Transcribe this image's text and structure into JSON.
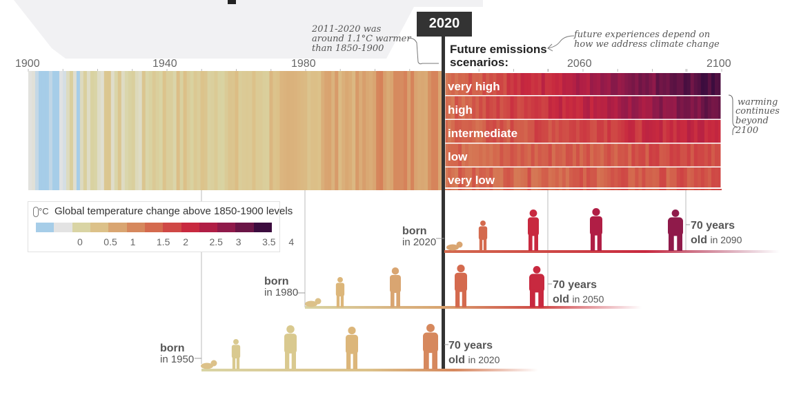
{
  "year_marker": "2020",
  "axis_ticks": [
    "1900",
    "1940",
    "1980",
    "2060",
    "2100"
  ],
  "annotation_observed": [
    "2011-2020 was",
    "around 1.1°C warmer",
    "than 1850-1900"
  ],
  "annotation_future": [
    "future experiences depend on",
    "how we address climate change"
  ],
  "future_title": [
    "Future emissions",
    "scenarios:"
  ],
  "scenarios": [
    "very high",
    "high",
    "intermediate",
    "low",
    "very low"
  ],
  "warming_note": [
    "warming",
    "continues",
    "beyond",
    "2100"
  ],
  "legend": {
    "title": "Global temperature change above 1850-1900 levels",
    "unit": "°C",
    "ticks": [
      "0",
      "0.5",
      "1",
      "1.5",
      "2",
      "2.5",
      "3",
      "3.5",
      "4"
    ],
    "colors": [
      "#a6cde8",
      "#e3e3e3",
      "#d9d4a4",
      "#dcc189",
      "#d9a571",
      "#d6885d",
      "#d46a4e",
      "#cf4845",
      "#c8293f",
      "#b01e45",
      "#8f1a4a",
      "#6a1546",
      "#3c0c3e"
    ]
  },
  "generations": [
    {
      "born_word": "born",
      "born_year": "in 2020",
      "age_num": "70 years",
      "age_old": "old",
      "age_year": "in 2090"
    },
    {
      "born_word": "born",
      "born_year": "in 1980",
      "age_num": "70 years",
      "age_old": "old",
      "age_year": "in 2050"
    },
    {
      "born_word": "born",
      "born_year": "in 1950",
      "age_num": "70 years",
      "age_old": "old",
      "age_year": "in 2020"
    }
  ]
}
